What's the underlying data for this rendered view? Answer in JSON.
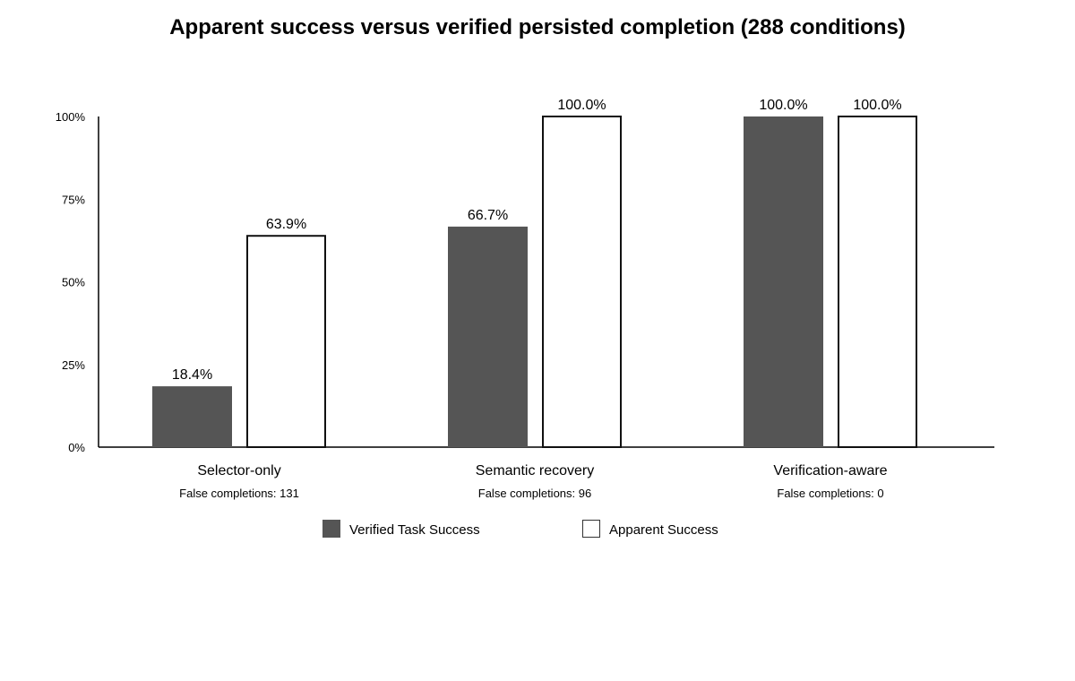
{
  "chart_data": {
    "type": "bar",
    "title": "Apparent success versus verified persisted completion (288 conditions)",
    "xlabel": "",
    "ylabel": "",
    "ylim": [
      0,
      100
    ],
    "y_ticks": [
      0,
      25,
      50,
      75,
      100
    ],
    "y_tick_labels": [
      "0%",
      "25%",
      "50%",
      "75%",
      "100%"
    ],
    "grid": false,
    "legend_position": "bottom-center",
    "categories": [
      "Selector-only",
      "Semantic recovery",
      "Verification-aware"
    ],
    "category_notes": [
      "False completions: 131",
      "False completions: 96",
      "False completions: 0"
    ],
    "series": [
      {
        "name": "Verified Task Success",
        "values": [
          18.4,
          66.7,
          100.0
        ],
        "value_labels": [
          "18.4%",
          "66.7%",
          "100.0%"
        ],
        "fill": "#555555",
        "stroke": "#555555"
      },
      {
        "name": "Apparent Success",
        "values": [
          63.9,
          100.0,
          100.0
        ],
        "value_labels": [
          "63.9%",
          "100.0%",
          "100.0%"
        ],
        "fill": "#ffffff",
        "stroke": "#111111"
      }
    ]
  }
}
